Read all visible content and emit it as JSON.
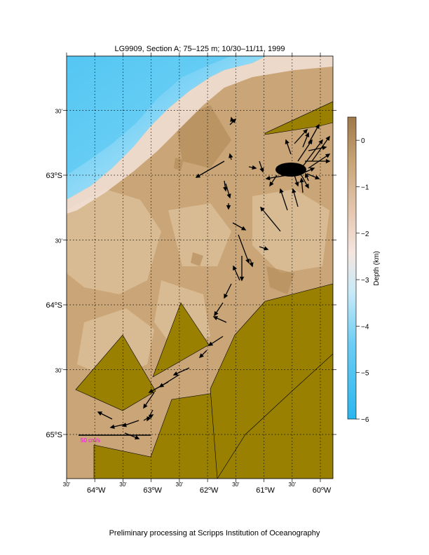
{
  "title": "LG9909, Section A; 75–125 m; 10/30–11/11, 1999",
  "footer": "Preliminary processing at Scripps Institution of Oceanography",
  "colorbar": {
    "label": "Depth (km)",
    "ticks": [
      "0",
      "−1",
      "−2",
      "−3",
      "−4",
      "−5",
      "−6"
    ],
    "range": [
      -6,
      0.5
    ]
  },
  "scale_label": "50 cm/s",
  "lat_labels": [
    {
      "deg": "",
      "min": "30'",
      "lat": -62.5
    },
    {
      "deg": "63",
      "min": "",
      "hemi": "S",
      "lat": -63.0
    },
    {
      "deg": "",
      "min": "30'",
      "lat": -63.5
    },
    {
      "deg": "64",
      "min": "",
      "hemi": "S",
      "lat": -64.0
    },
    {
      "deg": "",
      "min": "30'",
      "lat": -64.5
    },
    {
      "deg": "65",
      "min": "",
      "hemi": "S",
      "lat": -65.0
    }
  ],
  "lon_labels": [
    {
      "deg": "",
      "min": "30'",
      "lon": -64.5
    },
    {
      "deg": "64",
      "min": "",
      "hemi": "W",
      "lon": -64.0
    },
    {
      "deg": "",
      "min": "30'",
      "lon": -63.5
    },
    {
      "deg": "63",
      "min": "",
      "hemi": "W",
      "lon": -63.0
    },
    {
      "deg": "",
      "min": "30'",
      "lon": -62.5
    },
    {
      "deg": "62",
      "min": "",
      "hemi": "W",
      "lon": -62.0
    },
    {
      "deg": "",
      "min": "30'",
      "lon": -61.5
    },
    {
      "deg": "61",
      "min": "",
      "hemi": "W",
      "lon": -61.0
    },
    {
      "deg": "",
      "min": "30'",
      "lon": -60.5
    },
    {
      "deg": "60",
      "min": "",
      "hemi": "W",
      "lon": -60.0
    }
  ],
  "map_extent": {
    "lon": [
      -64.5,
      -59.8
    ],
    "lat": [
      -65.35,
      -62.1
    ]
  },
  "colors": {
    "land": "#998000",
    "shelf": "#c8a577",
    "deep": "#4fc3f1",
    "arrow": "#000000",
    "scale_text": "#ff00ff"
  }
}
